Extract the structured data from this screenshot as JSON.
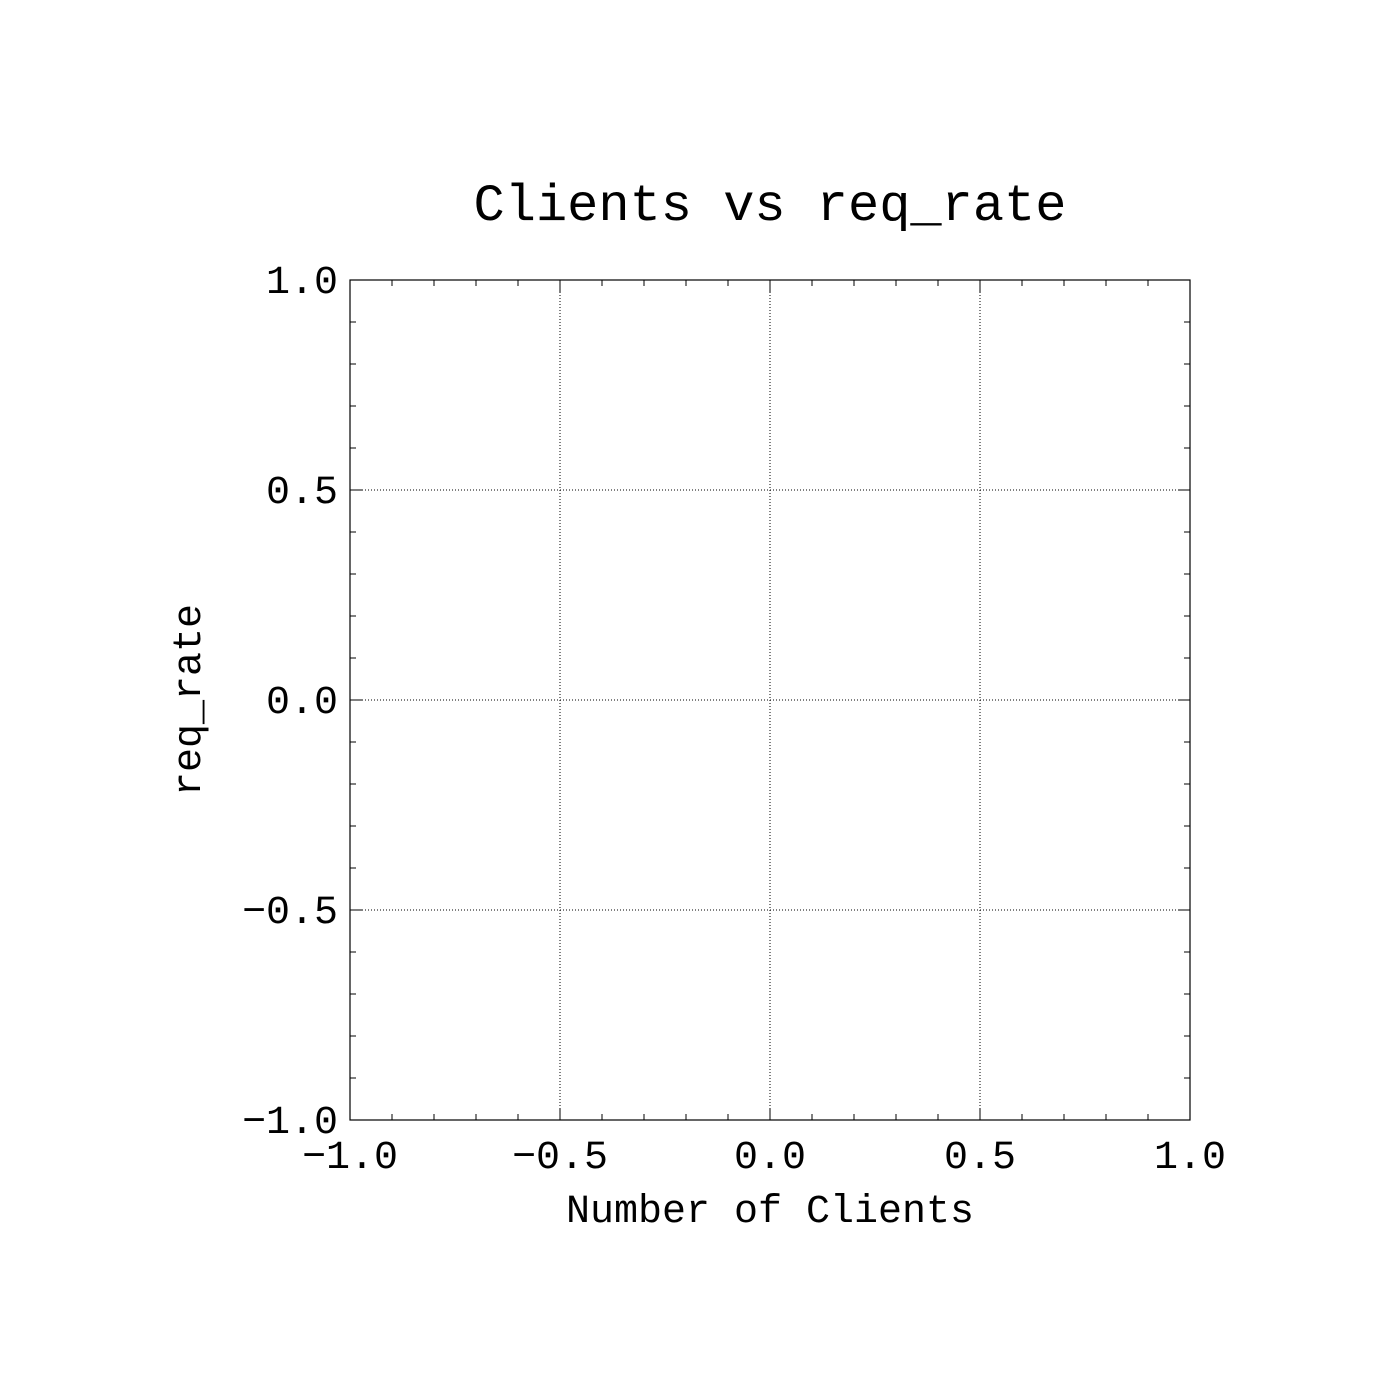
{
  "chart_data": {
    "type": "scatter",
    "title": "Clients vs req_rate",
    "xlabel": "Number of Clients",
    "ylabel": "req_rate",
    "xlim": [
      -1.0,
      1.0
    ],
    "ylim": [
      -1.0,
      1.0
    ],
    "x_ticks": [
      -1.0,
      -0.5,
      0.0,
      0.5,
      1.0
    ],
    "y_ticks": [
      -1.0,
      -0.5,
      0.0,
      0.5,
      1.0
    ],
    "x_tick_labels": [
      "−1.0",
      "−0.5",
      "0.0",
      "0.5",
      "1.0"
    ],
    "y_tick_labels": [
      "−1.0",
      "−0.5",
      "0.0",
      "0.5",
      "1.0"
    ],
    "minor_ticks_per_major": 5,
    "grid": true,
    "series": []
  }
}
